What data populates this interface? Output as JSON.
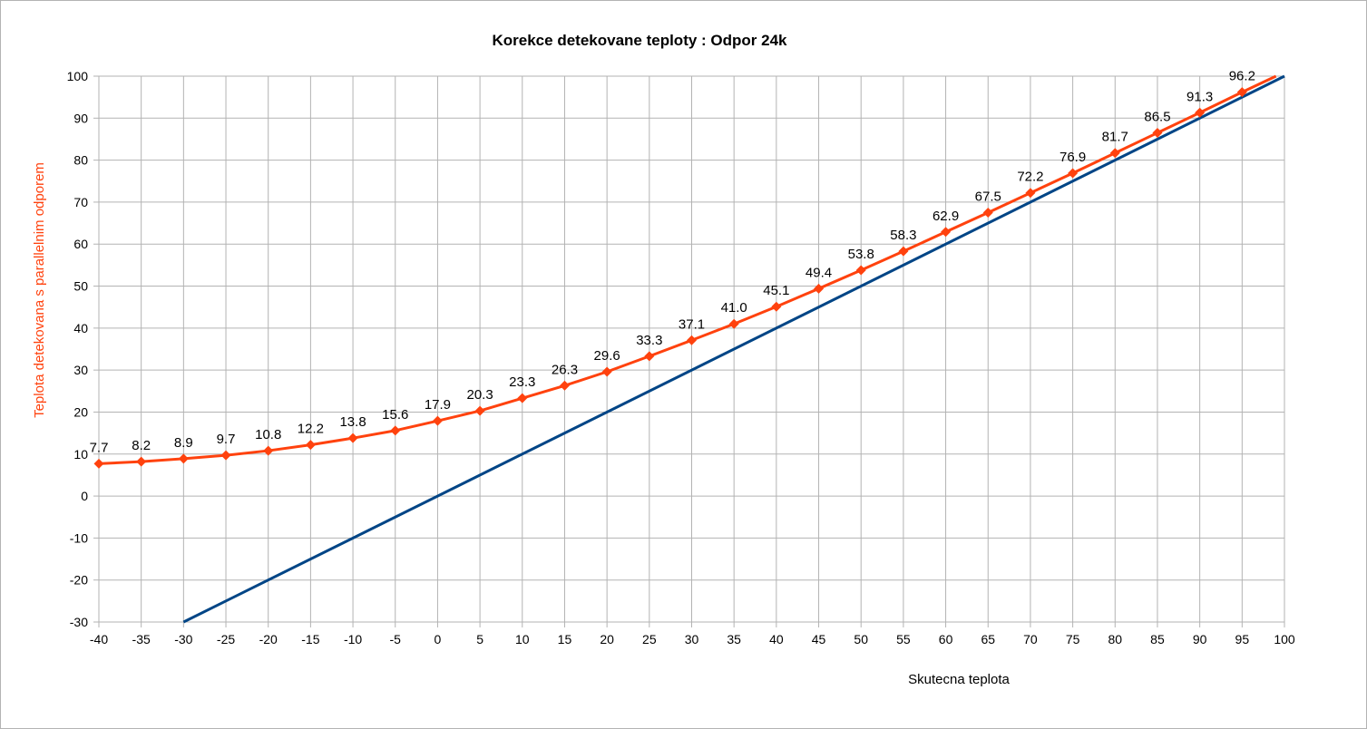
{
  "chart_data": {
    "type": "line",
    "title": "Korekce detekovane teploty : Odpor 24k",
    "xlabel": "Skutecna teplota",
    "ylabel": "Teplota detekovana s parallelnim odporem",
    "xlim": [
      -40,
      100
    ],
    "ylim": [
      -30,
      100
    ],
    "xticks": [
      -40,
      -35,
      -30,
      -25,
      -20,
      -15,
      -10,
      -5,
      0,
      5,
      10,
      15,
      20,
      25,
      30,
      35,
      40,
      45,
      50,
      55,
      60,
      65,
      70,
      75,
      80,
      85,
      90,
      95,
      100
    ],
    "yticks": [
      100,
      90,
      80,
      70,
      60,
      50,
      40,
      30,
      20,
      10,
      0,
      -10,
      -20,
      -30
    ],
    "grid": true,
    "series": [
      {
        "color": "#ff420e",
        "marker": "diamond",
        "x": [
          -40,
          -35,
          -30,
          -25,
          -20,
          -15,
          -10,
          -5,
          0,
          5,
          10,
          15,
          20,
          25,
          30,
          35,
          40,
          45,
          50,
          55,
          60,
          65,
          70,
          75,
          80,
          85,
          90,
          95,
          99
        ],
        "y": [
          7.7,
          8.2,
          8.9,
          9.7,
          10.8,
          12.2,
          13.8,
          15.6,
          17.9,
          20.3,
          23.3,
          26.3,
          29.6,
          33.3,
          37.1,
          41.0,
          45.1,
          49.4,
          53.8,
          58.3,
          62.9,
          67.5,
          72.2,
          76.9,
          81.7,
          86.5,
          91.3,
          96.2,
          100
        ],
        "labels": [
          "7.7",
          "8.2",
          "8.9",
          "9.7",
          "10.8",
          "12.2",
          "13.8",
          "15.6",
          "17.9",
          "20.3",
          "23.3",
          "26.3",
          "29.6",
          "33.3",
          "37.1",
          "41.0",
          "45.1",
          "49.4",
          "53.8",
          "58.3",
          "62.9",
          "67.5",
          "72.2",
          "76.9",
          "81.7",
          "86.5",
          "91.3",
          "96.2"
        ]
      },
      {
        "color": "#004586",
        "marker": "none",
        "x": [
          -30,
          100
        ],
        "y": [
          -30,
          100
        ]
      }
    ]
  }
}
